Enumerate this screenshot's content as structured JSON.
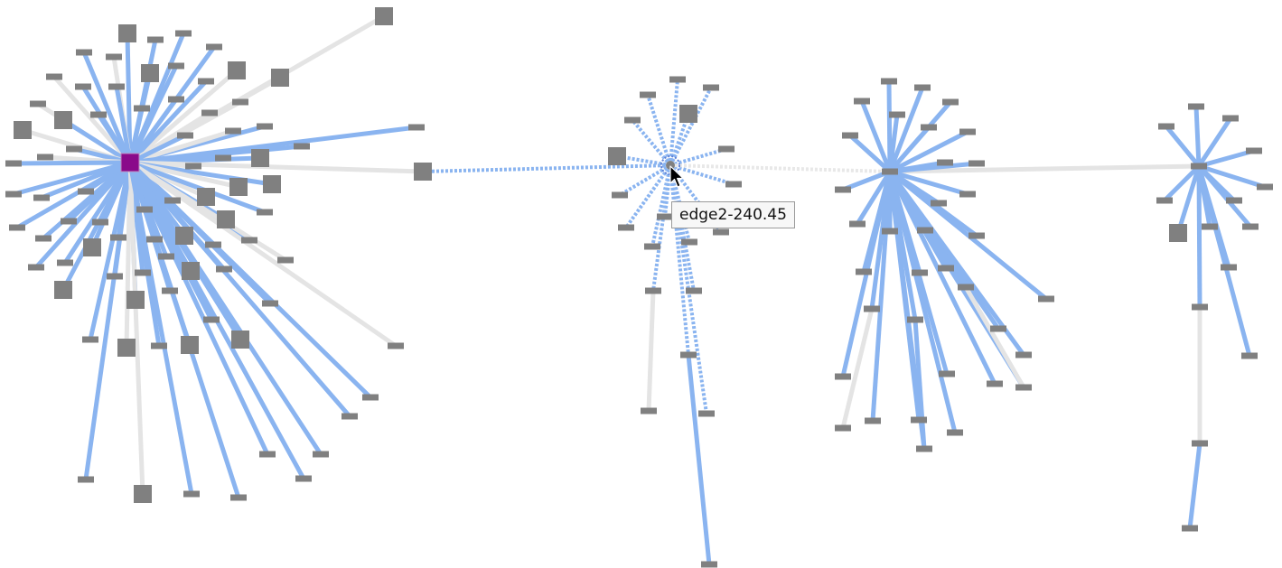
{
  "tooltip": {
    "text": "edge2-240.45"
  },
  "colors": {
    "background": "#ffffff",
    "edge_highlight": "#8ab4f0",
    "edge_normal": "#e4e4e4",
    "node": "#808080",
    "selected_node": "#8a0a8a",
    "hovered_node_ring": "#5b7fd6"
  },
  "graph": {
    "clusters": [
      {
        "id": "cluster-1",
        "hub_state": "selected",
        "neighbor_count": 82
      },
      {
        "id": "cluster-2",
        "hub_state": "hovered",
        "neighbor_count": 28
      },
      {
        "id": "cluster-3",
        "hub_state": "normal",
        "neighbor_count": 37
      },
      {
        "id": "cluster-4",
        "hub_state": "normal",
        "neighbor_count": 18
      }
    ],
    "cursor": "pointer-arrow-icon"
  }
}
